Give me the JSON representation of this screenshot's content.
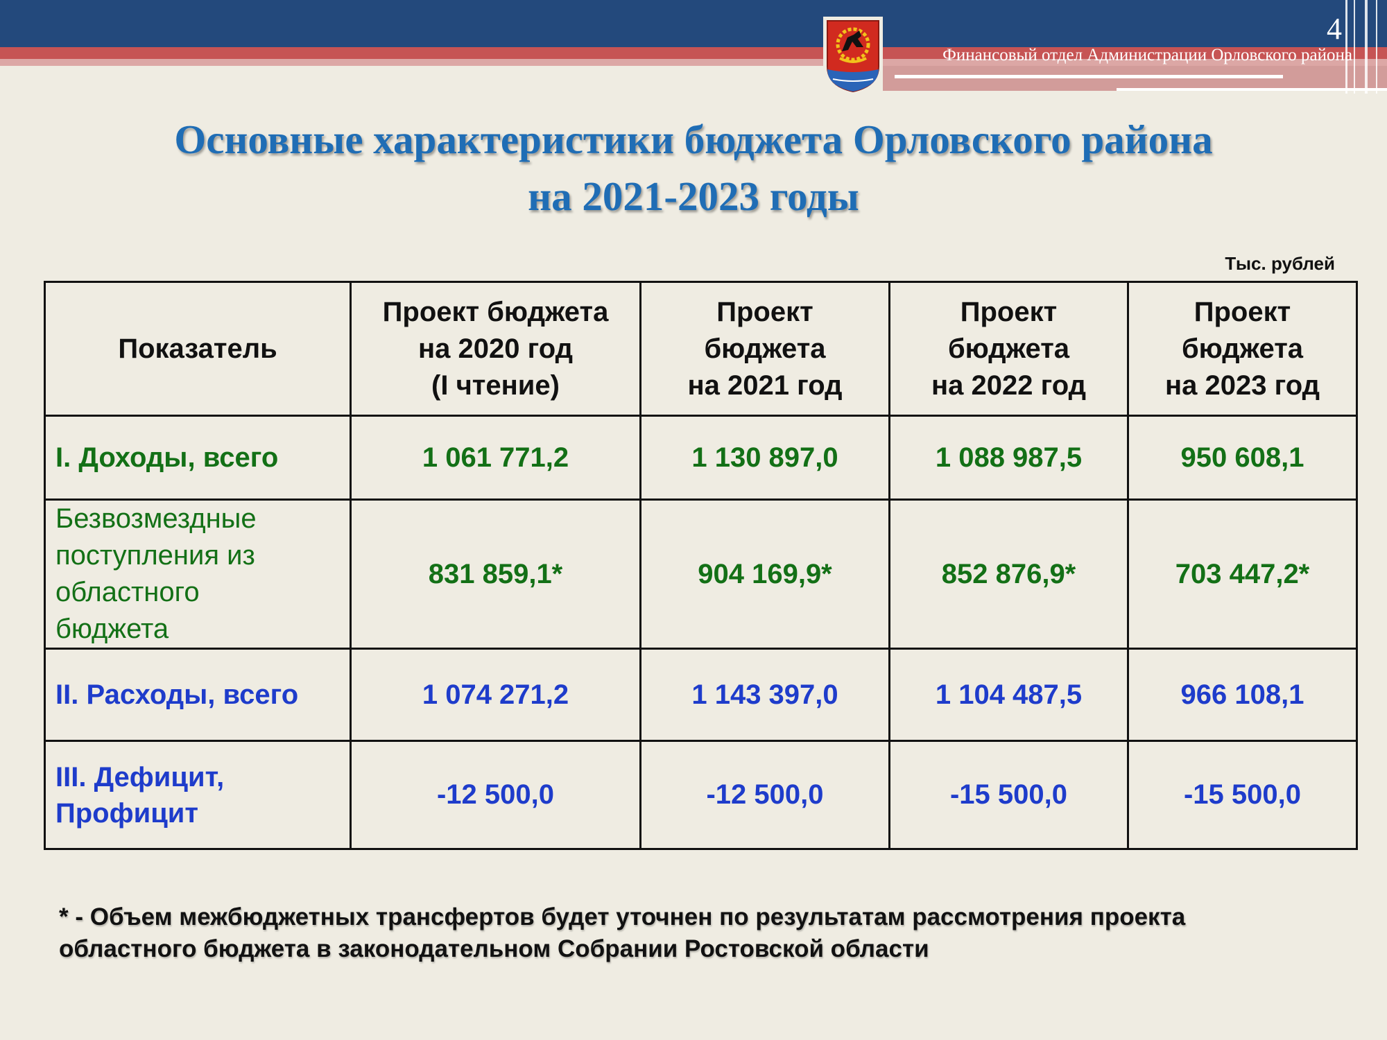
{
  "header": {
    "org_name": "Финансовый отдел Администрации Орловского района",
    "page_number": "4",
    "emblem_icon": "coat-of-arms-icon",
    "colors": {
      "band_blue": "#23497c",
      "band_red": "#c65454",
      "title_blue": "#1f6db5"
    }
  },
  "title": {
    "line1": "Основные характеристики бюджета Орловского района",
    "line2": "на 2021-2023 годы"
  },
  "unit": "Тыс. рублей",
  "table": {
    "headers": [
      {
        "lines": [
          "Показатель"
        ]
      },
      {
        "lines": [
          "Проект бюджета",
          "на 2020 год",
          "(I чтение)"
        ]
      },
      {
        "lines": [
          "Проект",
          "бюджета",
          "на 2021 год"
        ]
      },
      {
        "lines": [
          "Проект",
          "бюджета",
          "на 2022 год"
        ]
      },
      {
        "lines": [
          "Проект",
          "бюджета",
          "на 2023 год"
        ]
      }
    ],
    "rows": [
      {
        "label_lines": [
          "I. Доходы, всего"
        ],
        "values": [
          "1 061 771,2",
          "1 130 897,0",
          "1 088 987,5",
          "950 608,1"
        ]
      },
      {
        "label_lines": [
          "Безвозмездные",
          "поступления из",
          "областного",
          "бюджета"
        ],
        "values": [
          "831 859,1*",
          "904 169,9*",
          "852 876,9*",
          "703 447,2*"
        ]
      },
      {
        "label_lines": [
          "II. Расходы, всего"
        ],
        "values": [
          "1 074 271,2",
          "1 143 397,0",
          "1 104 487,5",
          "966 108,1"
        ]
      },
      {
        "label_lines": [
          "III. Дефицит,",
          "Профицит"
        ],
        "values": [
          "-12 500,0",
          "-12 500,0",
          "-15 500,0",
          "-15 500,0"
        ]
      }
    ],
    "colors": {
      "income": "#137016",
      "expense": "#1e3ccb"
    }
  },
  "footnote": {
    "line1": "* - Объем межбюджетных трансфертов будет уточнен по результатам рассмотрения проекта",
    "line2": "областного бюджета в законодательном Собрании Ростовской области"
  }
}
